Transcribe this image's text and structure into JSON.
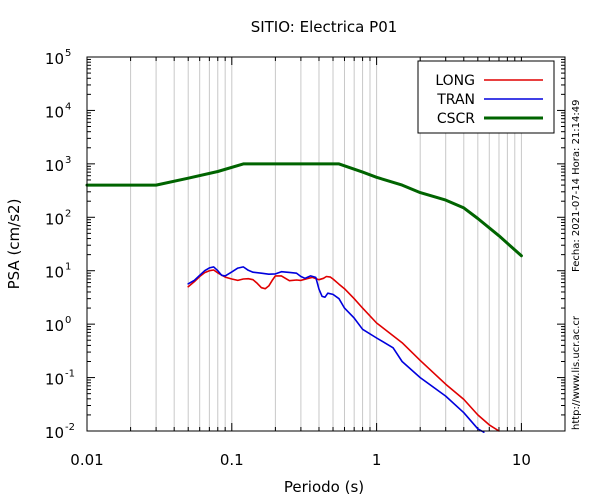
{
  "chart_data": {
    "type": "line",
    "title": "SITIO: Electrica P01",
    "xlabel": "Periodo (s)",
    "ylabel": "PSA (cm/s2)",
    "xscale": "log",
    "yscale": "log",
    "xlim": [
      0.01,
      20
    ],
    "ylim": [
      0.01,
      100000
    ],
    "x_ticks": [
      {
        "value": 0.01,
        "label": "0.01"
      },
      {
        "value": 0.1,
        "label": "0.1"
      },
      {
        "value": 1,
        "label": "1"
      },
      {
        "value": 10,
        "label": "10"
      }
    ],
    "y_ticks": [
      {
        "value": 0.01,
        "base": "10",
        "exp": "-2"
      },
      {
        "value": 0.1,
        "base": "10",
        "exp": "-1"
      },
      {
        "value": 1,
        "base": "10",
        "exp": "0"
      },
      {
        "value": 10,
        "base": "10",
        "exp": "1"
      },
      {
        "value": 100,
        "base": "10",
        "exp": "2"
      },
      {
        "value": 1000,
        "base": "10",
        "exp": "3"
      },
      {
        "value": 10000,
        "base": "10",
        "exp": "4"
      },
      {
        "value": 100000,
        "base": "10",
        "exp": "5"
      }
    ],
    "grid": "vertical minor and major lines",
    "legend_position": "top-right",
    "series": [
      {
        "name": "LONG",
        "color": "#e00000",
        "points": [
          [
            0.05,
            5
          ],
          [
            0.055,
            6.2
          ],
          [
            0.06,
            7.8
          ],
          [
            0.065,
            9.2
          ],
          [
            0.07,
            10
          ],
          [
            0.075,
            10.3
          ],
          [
            0.08,
            9.1
          ],
          [
            0.09,
            7.6
          ],
          [
            0.1,
            7
          ],
          [
            0.11,
            6.6
          ],
          [
            0.12,
            7
          ],
          [
            0.13,
            7.1
          ],
          [
            0.14,
            6.8
          ],
          [
            0.15,
            5.8
          ],
          [
            0.16,
            4.8
          ],
          [
            0.17,
            4.6
          ],
          [
            0.18,
            5.2
          ],
          [
            0.19,
            6.6
          ],
          [
            0.2,
            8
          ],
          [
            0.22,
            8
          ],
          [
            0.25,
            6.5
          ],
          [
            0.28,
            6.7
          ],
          [
            0.3,
            6.6
          ],
          [
            0.33,
            7.1
          ],
          [
            0.36,
            7.5
          ],
          [
            0.4,
            6.8
          ],
          [
            0.43,
            7.2
          ],
          [
            0.45,
            7.8
          ],
          [
            0.48,
            7.6
          ],
          [
            0.5,
            7
          ],
          [
            0.55,
            5.6
          ],
          [
            0.6,
            4.6
          ],
          [
            0.7,
            3
          ],
          [
            0.8,
            2
          ],
          [
            1,
            1.05
          ],
          [
            1.5,
            0.45
          ],
          [
            2,
            0.21
          ],
          [
            3,
            0.075
          ],
          [
            4,
            0.039
          ],
          [
            5,
            0.02
          ],
          [
            6,
            0.013
          ],
          [
            7,
            0.01
          ]
        ]
      },
      {
        "name": "TRAN",
        "color": "#0000dd",
        "points": [
          [
            0.05,
            5.7
          ],
          [
            0.055,
            6.6
          ],
          [
            0.06,
            8.2
          ],
          [
            0.065,
            10
          ],
          [
            0.07,
            11.3
          ],
          [
            0.075,
            11.8
          ],
          [
            0.08,
            10
          ],
          [
            0.085,
            8.2
          ],
          [
            0.09,
            8
          ],
          [
            0.1,
            9.5
          ],
          [
            0.11,
            11.2
          ],
          [
            0.12,
            11.8
          ],
          [
            0.13,
            10.2
          ],
          [
            0.14,
            9.4
          ],
          [
            0.16,
            9
          ],
          [
            0.18,
            8.6
          ],
          [
            0.2,
            8.7
          ],
          [
            0.22,
            9.6
          ],
          [
            0.25,
            9.3
          ],
          [
            0.28,
            9
          ],
          [
            0.3,
            7.8
          ],
          [
            0.32,
            7.2
          ],
          [
            0.35,
            8
          ],
          [
            0.38,
            7.5
          ],
          [
            0.4,
            4.5
          ],
          [
            0.42,
            3.3
          ],
          [
            0.44,
            3.2
          ],
          [
            0.46,
            3.8
          ],
          [
            0.5,
            3.6
          ],
          [
            0.55,
            3
          ],
          [
            0.6,
            2
          ],
          [
            0.7,
            1.3
          ],
          [
            0.8,
            0.8
          ],
          [
            1,
            0.55
          ],
          [
            1.3,
            0.36
          ],
          [
            1.5,
            0.2
          ],
          [
            2,
            0.1
          ],
          [
            3,
            0.045
          ],
          [
            4,
            0.022
          ],
          [
            5,
            0.011
          ],
          [
            5.5,
            0.0095
          ]
        ]
      },
      {
        "name": "CSCR",
        "color": "#006400",
        "points": [
          [
            0.01,
            400
          ],
          [
            0.03,
            400
          ],
          [
            0.05,
            540
          ],
          [
            0.08,
            720
          ],
          [
            0.12,
            1000
          ],
          [
            0.55,
            1000
          ],
          [
            0.8,
            700
          ],
          [
            1,
            560
          ],
          [
            1.5,
            400
          ],
          [
            2,
            290
          ],
          [
            3,
            210
          ],
          [
            4,
            150
          ],
          [
            5,
            95
          ],
          [
            7,
            45
          ],
          [
            10,
            19
          ]
        ]
      }
    ]
  },
  "side_text": {
    "date": "Fecha: 2021-07-14 Hora: 21:14:49",
    "url": "http://www.lis.ucr.ac.cr"
  }
}
